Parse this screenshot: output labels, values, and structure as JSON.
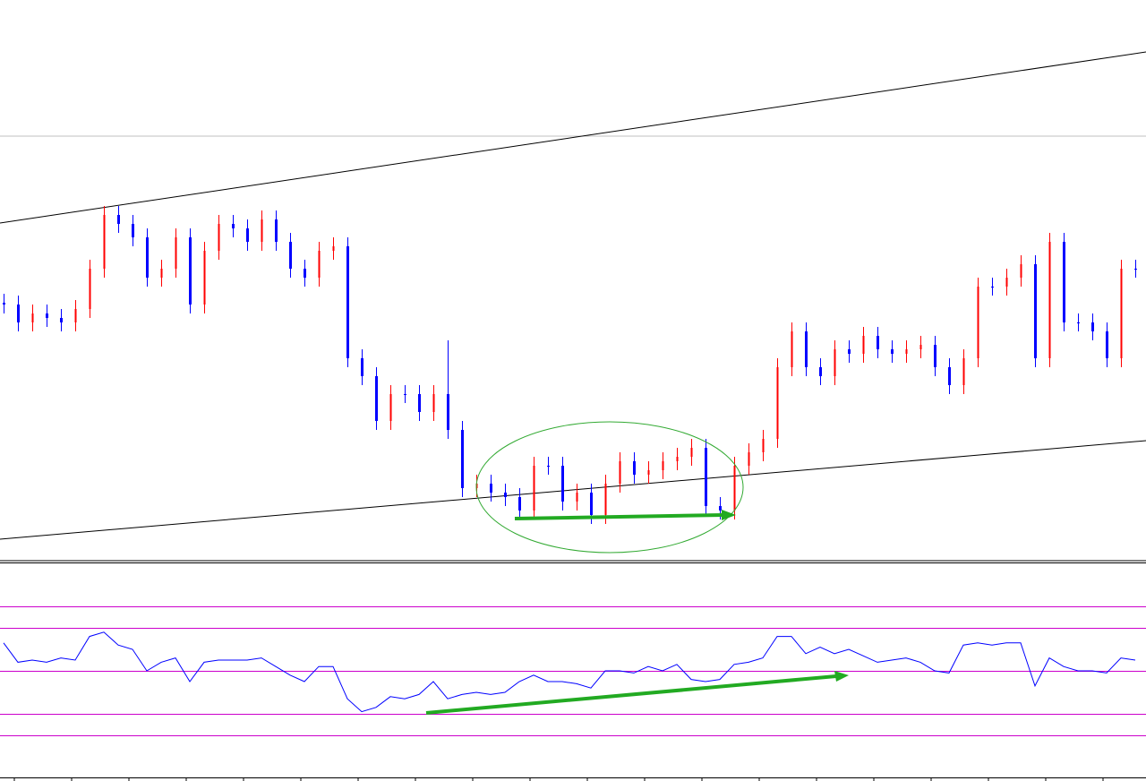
{
  "chart_data": [
    {
      "type": "candlestick",
      "up_color": "#ff0000",
      "down_color": "#0000ff",
      "ylim": [
        0,
        628
      ],
      "open": [
        290,
        288,
        268,
        278,
        273,
        268,
        283,
        328,
        388,
        378,
        363,
        318,
        328,
        363,
        288,
        348,
        378,
        373,
        358,
        383,
        358,
        328,
        318,
        348,
        353,
        228,
        208,
        158,
        188,
        188,
        168,
        188,
        148,
        83,
        88,
        78,
        73,
        58,
        108,
        108,
        68,
        78,
        53,
        88,
        113,
        98,
        103,
        113,
        118,
        128,
        63,
        58,
        108,
        123,
        138,
        218,
        258,
        218,
        208,
        238,
        233,
        253,
        238,
        233,
        238,
        243,
        218,
        198,
        228,
        308,
        308,
        318,
        333,
        228,
        358,
        268,
        268,
        258,
        228,
        328
      ],
      "high": [
        300,
        298,
        288,
        288,
        283,
        293,
        338,
        398,
        398,
        388,
        373,
        338,
        373,
        373,
        358,
        388,
        388,
        383,
        393,
        393,
        368,
        338,
        358,
        363,
        363,
        238,
        218,
        198,
        198,
        198,
        198,
        248,
        158,
        98,
        98,
        88,
        83,
        118,
        118,
        118,
        88,
        88,
        98,
        123,
        123,
        113,
        123,
        128,
        138,
        138,
        73,
        118,
        133,
        148,
        228,
        268,
        268,
        228,
        248,
        248,
        263,
        263,
        248,
        248,
        253,
        253,
        228,
        238,
        318,
        318,
        328,
        343,
        343,
        368,
        368,
        278,
        278,
        268,
        338,
        338
      ],
      "low": [
        278,
        258,
        258,
        263,
        258,
        258,
        273,
        318,
        368,
        353,
        308,
        308,
        318,
        278,
        278,
        338,
        363,
        348,
        348,
        348,
        318,
        308,
        308,
        338,
        218,
        198,
        148,
        148,
        178,
        158,
        158,
        138,
        73,
        73,
        68,
        63,
        48,
        48,
        98,
        58,
        58,
        43,
        43,
        78,
        88,
        88,
        93,
        103,
        108,
        53,
        48,
        48,
        98,
        113,
        128,
        208,
        208,
        198,
        198,
        223,
        223,
        228,
        223,
        223,
        228,
        208,
        188,
        188,
        218,
        298,
        298,
        308,
        218,
        218,
        258,
        258,
        248,
        218,
        218,
        318
      ],
      "close": [
        288,
        268,
        278,
        273,
        268,
        283,
        328,
        388,
        378,
        363,
        318,
        328,
        363,
        288,
        348,
        378,
        373,
        358,
        383,
        358,
        328,
        318,
        348,
        353,
        228,
        208,
        158,
        188,
        188,
        168,
        188,
        148,
        83,
        88,
        78,
        73,
        58,
        108,
        108,
        68,
        78,
        53,
        88,
        113,
        98,
        103,
        113,
        118,
        128,
        63,
        58,
        108,
        123,
        138,
        218,
        258,
        218,
        208,
        238,
        233,
        253,
        238,
        233,
        238,
        243,
        218,
        198,
        228,
        308,
        308,
        318,
        333,
        228,
        358,
        268,
        268,
        258,
        228,
        328,
        328
      ]
    },
    {
      "type": "line",
      "color": "#0000ff",
      "grid_color": "#cc00cc",
      "ylim": [
        0,
        100
      ],
      "yticks": [
        20,
        30,
        50,
        70,
        80
      ],
      "grid": true,
      "values": [
        63,
        54,
        55,
        54,
        56,
        55,
        66,
        68,
        62,
        60,
        50,
        54,
        56,
        45,
        54,
        55,
        55,
        55,
        56,
        52,
        48,
        45,
        52,
        52,
        37,
        31,
        33,
        38,
        37,
        39,
        45,
        37,
        39,
        40,
        39,
        40,
        45,
        48,
        45,
        45,
        44,
        42,
        50,
        50,
        49,
        52,
        50,
        53,
        46,
        45,
        46,
        53,
        54,
        56,
        66,
        66,
        58,
        61,
        58,
        60,
        57,
        54,
        55,
        56,
        54,
        50,
        49,
        62,
        63,
        62,
        63,
        63,
        43,
        56,
        52,
        50,
        50,
        49,
        56,
        55
      ]
    }
  ]
}
